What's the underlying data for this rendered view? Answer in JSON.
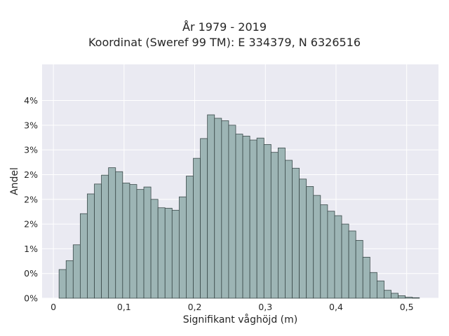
{
  "title_line1": "År 1979 - 2019",
  "title_line2": "Koordinat (Sweref 99 TM): E 334379, N 6326516",
  "colors": {
    "plot_bg": "#eaeaf2",
    "grid": "#ffffff",
    "bar_fill": "#9db5b5",
    "bar_edge": "#3b4a4a"
  },
  "chart_data": {
    "type": "bar",
    "title": "År 1979 - 2019\nKoordinat (Sweref 99 TM): E 334379, N 6326516",
    "xlabel": "Signifikant våghöjd (m)",
    "ylabel": "Andel",
    "xlim": [
      -0.016,
      0.545
    ],
    "ylim": [
      0,
      0.0473
    ],
    "grid": true,
    "bin_width": 0.01,
    "x_ticks": [
      {
        "value": 0.0,
        "label": "0"
      },
      {
        "value": 0.1,
        "label": "0,1"
      },
      {
        "value": 0.2,
        "label": "0,2"
      },
      {
        "value": 0.3,
        "label": "0,3"
      },
      {
        "value": 0.4,
        "label": "0,4"
      },
      {
        "value": 0.5,
        "label": "0,5"
      }
    ],
    "y_ticks": [
      {
        "value": 0.0,
        "label": "0%"
      },
      {
        "value": 0.005,
        "label": "0%"
      },
      {
        "value": 0.01,
        "label": "1%"
      },
      {
        "value": 0.015,
        "label": "2%"
      },
      {
        "value": 0.02,
        "label": "2%"
      },
      {
        "value": 0.025,
        "label": "2%"
      },
      {
        "value": 0.03,
        "label": "3%"
      },
      {
        "value": 0.035,
        "label": "3%"
      },
      {
        "value": 0.04,
        "label": "4%"
      }
    ],
    "bins": [
      0.008,
      0.018,
      0.028,
      0.038,
      0.048,
      0.058,
      0.068,
      0.078,
      0.088,
      0.098,
      0.108,
      0.118,
      0.128,
      0.138,
      0.148,
      0.158,
      0.168,
      0.178,
      0.188,
      0.198,
      0.208,
      0.218,
      0.228,
      0.238,
      0.248,
      0.258,
      0.268,
      0.278,
      0.288,
      0.298,
      0.308,
      0.318,
      0.328,
      0.338,
      0.348,
      0.358,
      0.368,
      0.378,
      0.388,
      0.398,
      0.408,
      0.418,
      0.428,
      0.438,
      0.448,
      0.458,
      0.468,
      0.478,
      0.488,
      0.498,
      0.508
    ],
    "values": [
      0.0058,
      0.0076,
      0.0108,
      0.0171,
      0.0211,
      0.0231,
      0.0249,
      0.0264,
      0.0256,
      0.0233,
      0.023,
      0.022,
      0.0225,
      0.02,
      0.0183,
      0.0182,
      0.0178,
      0.0205,
      0.0247,
      0.0283,
      0.0323,
      0.0371,
      0.0364,
      0.0359,
      0.035,
      0.0332,
      0.0328,
      0.032,
      0.0324,
      0.0311,
      0.0295,
      0.0304,
      0.0279,
      0.0263,
      0.0241,
      0.0226,
      0.0208,
      0.0189,
      0.0176,
      0.0167,
      0.015,
      0.0136,
      0.0117,
      0.0083,
      0.0052,
      0.0035,
      0.0016,
      0.001,
      0.0005,
      0.0002,
      0.0001
    ]
  }
}
